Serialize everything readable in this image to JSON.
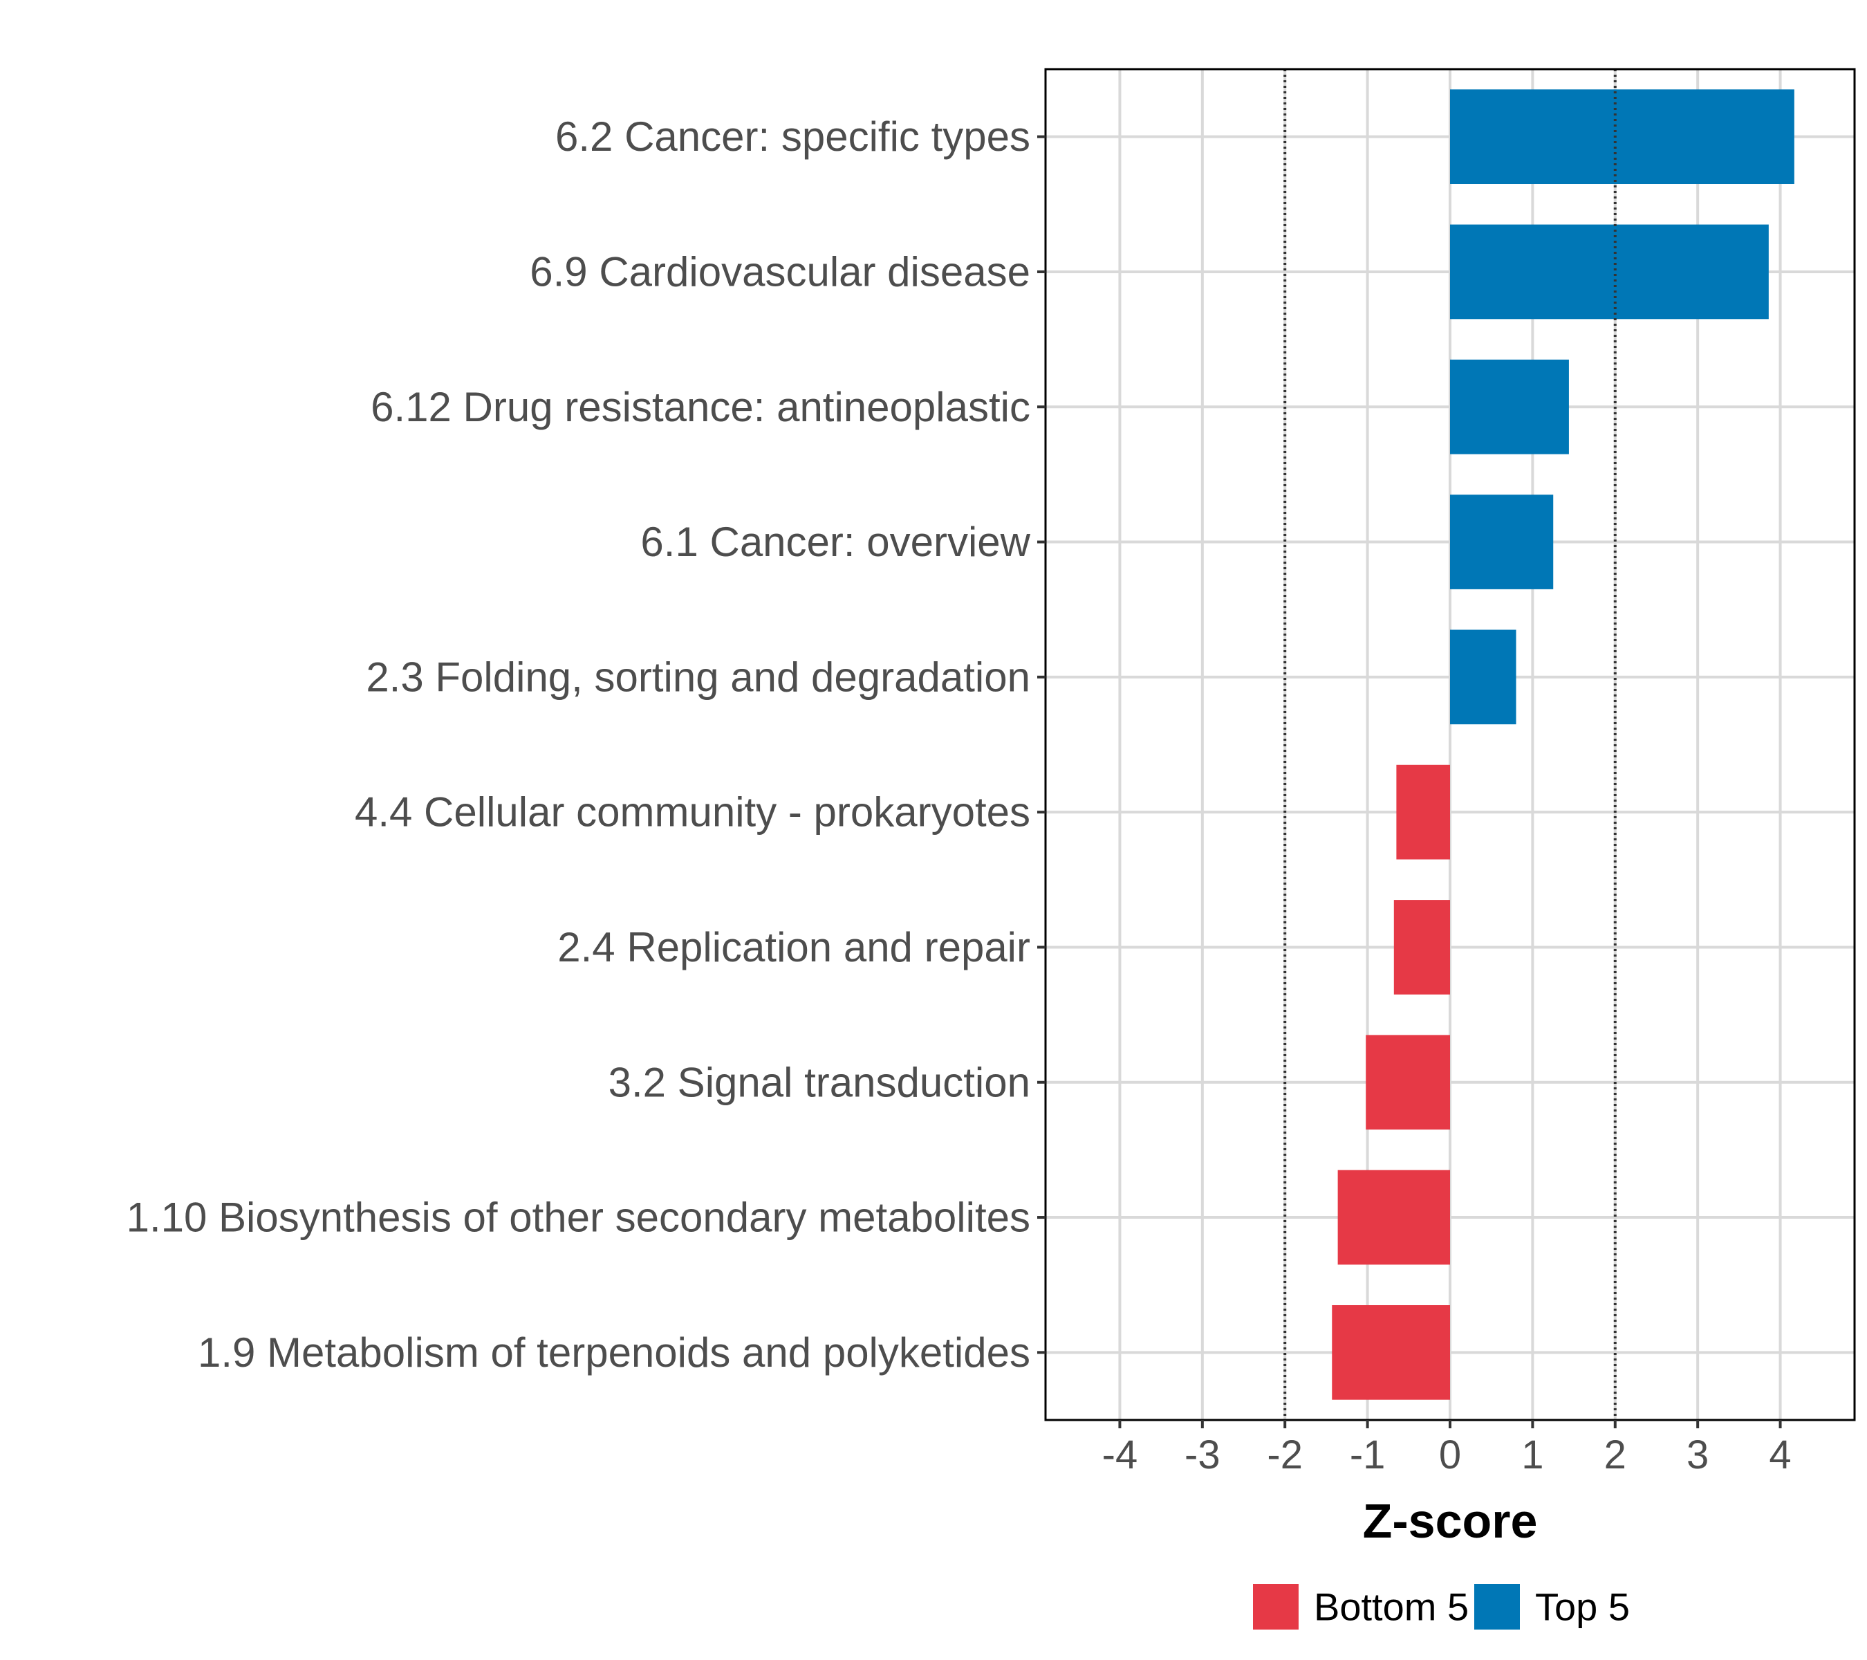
{
  "chart_data": {
    "type": "bar",
    "orientation": "horizontal",
    "categories": [
      "6.2 Cancer: specific types",
      "6.9 Cardiovascular disease",
      "6.12 Drug resistance: antineoplastic",
      "6.1 Cancer: overview",
      "2.3 Folding, sorting and degradation",
      "4.4 Cellular community - prokaryotes",
      "2.4 Replication and repair",
      "3.2 Signal transduction",
      "1.10 Biosynthesis of other secondary metabolites",
      "1.9 Metabolism of terpenoids and polyketides"
    ],
    "values": [
      4.17,
      3.86,
      1.44,
      1.25,
      0.8,
      -0.65,
      -0.68,
      -1.02,
      -1.36,
      -1.43
    ],
    "groups": [
      "Top 5",
      "Top 5",
      "Top 5",
      "Top 5",
      "Top 5",
      "Bottom 5",
      "Bottom 5",
      "Bottom 5",
      "Bottom 5",
      "Bottom 5"
    ],
    "xlabel": "Z-score",
    "ylabel": "",
    "xlim": [
      -4.9,
      4.9
    ],
    "xticks": [
      -4,
      -3,
      -2,
      -1,
      0,
      1,
      2,
      3,
      4
    ],
    "xtick_labels": [
      "-4",
      "-3",
      "-2",
      "-1",
      "0",
      "1",
      "2",
      "3",
      "4"
    ],
    "reference_lines": [
      -2,
      2
    ],
    "grid": true,
    "legend": {
      "position": "bottom",
      "items": [
        {
          "label": "Bottom 5",
          "color": "#e63946"
        },
        {
          "label": "Top 5",
          "color": "#0077b6"
        }
      ]
    },
    "colors": {
      "Top 5": "#0077b6",
      "Bottom 5": "#e63946"
    }
  }
}
